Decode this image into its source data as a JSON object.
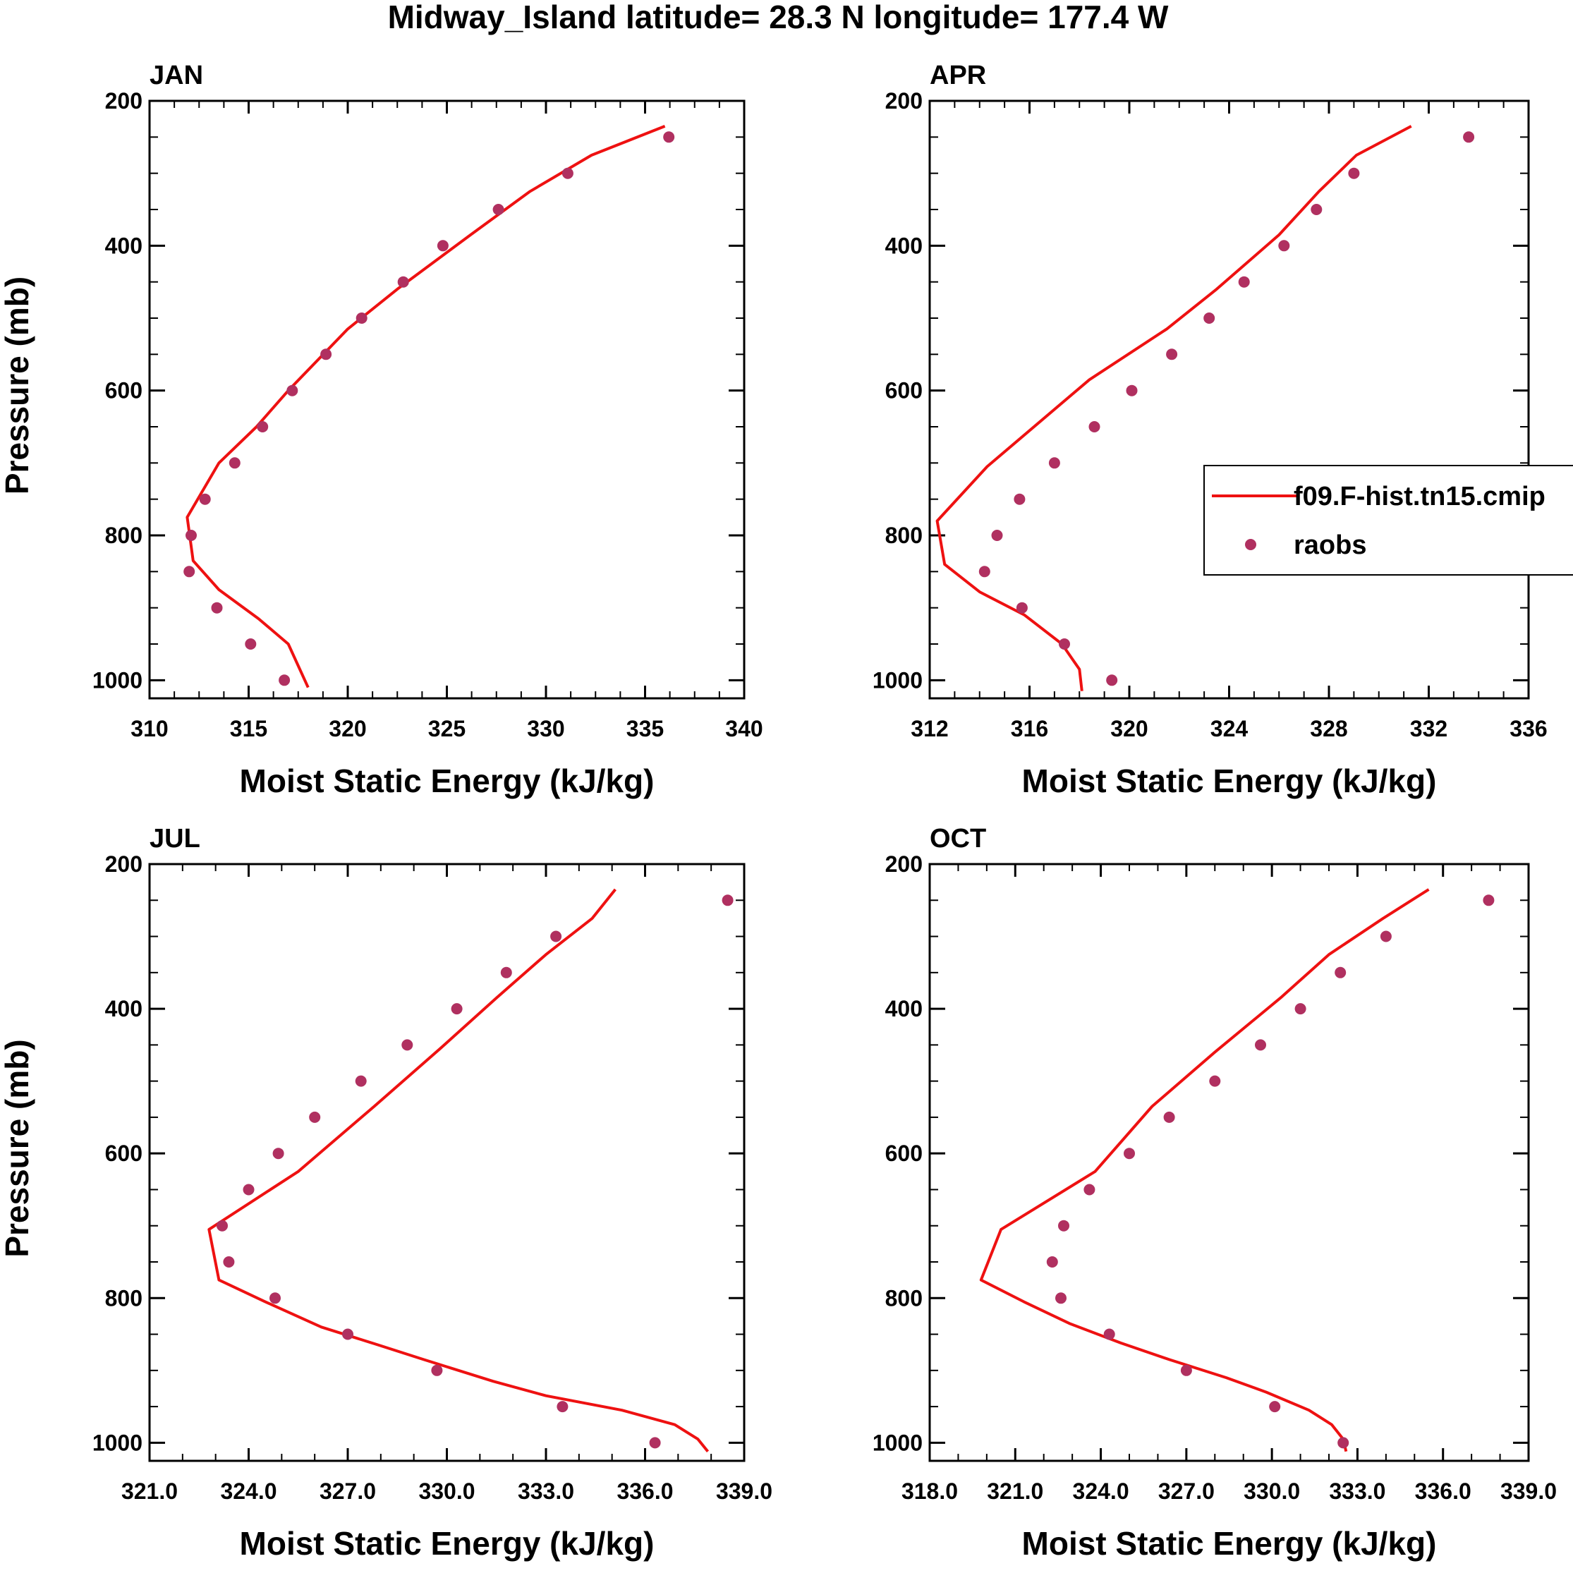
{
  "figure_title": "Midway_Island  latitude= 28.3 N longitude= 177.4 W",
  "colors": {
    "model": "#ee1111",
    "obs": "#b03060",
    "axis": "#000000"
  },
  "legend": {
    "model_label": "f09.F-hist.tn15.cmip",
    "obs_label": "raobs"
  },
  "chart_data": [
    {
      "type": "line",
      "panel": "JAN",
      "title": "JAN",
      "xlabel": "Moist Static Energy (kJ/kg)",
      "ylabel": "Pressure (mb)",
      "xlim": [
        310,
        340
      ],
      "ylim": [
        200,
        1025
      ],
      "y_inverted": true,
      "xticks": [
        310,
        315,
        320,
        325,
        330,
        335,
        340
      ],
      "xtick_labels": [
        "310",
        "315",
        "320",
        "325",
        "330",
        "335",
        "340"
      ],
      "yticks": [
        200,
        400,
        600,
        800,
        1000
      ],
      "ytick_labels": [
        "200",
        "400",
        "600",
        "800",
        "1000"
      ],
      "series": [
        {
          "name": "f09.F-hist.tn15.cmip",
          "kind": "line",
          "points": [
            [
              336.0,
              235
            ],
            [
              332.3,
              275
            ],
            [
              329.2,
              325
            ],
            [
              326.2,
              385
            ],
            [
              322.5,
              460
            ],
            [
              320.0,
              515
            ],
            [
              317.0,
              600
            ],
            [
              315.4,
              650
            ],
            [
              313.5,
              700
            ],
            [
              311.9,
              775
            ],
            [
              312.2,
              835
            ],
            [
              313.5,
              875
            ],
            [
              315.5,
              915
            ],
            [
              317.0,
              950
            ],
            [
              318.0,
              1010
            ]
          ]
        },
        {
          "name": "raobs",
          "kind": "scatter",
          "points": [
            [
              336.2,
              250
            ],
            [
              331.1,
              300
            ],
            [
              327.6,
              350
            ],
            [
              324.8,
              400
            ],
            [
              322.8,
              450
            ],
            [
              320.7,
              500
            ],
            [
              318.9,
              550
            ],
            [
              317.2,
              600
            ],
            [
              315.7,
              650
            ],
            [
              314.3,
              700
            ],
            [
              312.8,
              750
            ],
            [
              312.1,
              800
            ],
            [
              312.0,
              850
            ],
            [
              313.4,
              900
            ],
            [
              315.1,
              950
            ],
            [
              316.8,
              1000
            ]
          ]
        }
      ]
    },
    {
      "type": "line",
      "panel": "APR",
      "title": "APR",
      "xlabel": "Moist Static Energy (kJ/kg)",
      "ylabel": "",
      "xlim": [
        312,
        336
      ],
      "ylim": [
        200,
        1025
      ],
      "y_inverted": true,
      "xticks": [
        312,
        316,
        320,
        324,
        328,
        332,
        336
      ],
      "xtick_labels": [
        "312",
        "316",
        "320",
        "324",
        "328",
        "332",
        "336"
      ],
      "yticks": [
        200,
        400,
        600,
        800,
        1000
      ],
      "ytick_labels": [
        "200",
        "400",
        "600",
        "800",
        "1000"
      ],
      "series": [
        {
          "name": "f09.F-hist.tn15.cmip",
          "kind": "line",
          "points": [
            [
              331.3,
              235
            ],
            [
              329.1,
              275
            ],
            [
              327.6,
              325
            ],
            [
              326.0,
              385
            ],
            [
              323.5,
              460
            ],
            [
              321.5,
              515
            ],
            [
              318.4,
              585
            ],
            [
              314.3,
              705
            ],
            [
              312.3,
              780
            ],
            [
              312.6,
              840
            ],
            [
              314.0,
              878
            ],
            [
              315.8,
              910
            ],
            [
              317.3,
              950
            ],
            [
              318.0,
              985
            ],
            [
              318.1,
              1015
            ]
          ]
        },
        {
          "name": "raobs",
          "kind": "scatter",
          "points": [
            [
              333.6,
              250
            ],
            [
              329.0,
              300
            ],
            [
              327.5,
              350
            ],
            [
              326.2,
              400
            ],
            [
              324.6,
              450
            ],
            [
              323.2,
              500
            ],
            [
              321.7,
              550
            ],
            [
              320.1,
              600
            ],
            [
              318.6,
              650
            ],
            [
              317.0,
              700
            ],
            [
              315.6,
              750
            ],
            [
              314.7,
              800
            ],
            [
              314.2,
              850
            ],
            [
              315.7,
              900
            ],
            [
              317.4,
              950
            ],
            [
              319.3,
              1000
            ]
          ]
        }
      ]
    },
    {
      "type": "line",
      "panel": "JUL",
      "title": "JUL",
      "xlabel": "Moist Static Energy (kJ/kg)",
      "ylabel": "Pressure (mb)",
      "xlim": [
        321,
        339
      ],
      "ylim": [
        200,
        1025
      ],
      "y_inverted": true,
      "xticks": [
        321,
        324,
        327,
        330,
        333,
        336,
        339
      ],
      "xtick_labels": [
        "321.0",
        "324.0",
        "327.0",
        "330.0",
        "333.0",
        "336.0",
        "339.0"
      ],
      "yticks": [
        200,
        400,
        600,
        800,
        1000
      ],
      "ytick_labels": [
        "200",
        "400",
        "600",
        "800",
        "1000"
      ],
      "series": [
        {
          "name": "f09.F-hist.tn15.cmip",
          "kind": "line",
          "points": [
            [
              335.1,
              235
            ],
            [
              334.4,
              275
            ],
            [
              333.0,
              325
            ],
            [
              331.5,
              385
            ],
            [
              329.8,
              455
            ],
            [
              327.8,
              535
            ],
            [
              325.5,
              625
            ],
            [
              322.8,
              705
            ],
            [
              323.1,
              775
            ],
            [
              324.5,
              805
            ],
            [
              326.2,
              840
            ],
            [
              327.8,
              863
            ],
            [
              329.3,
              885
            ],
            [
              331.4,
              915
            ],
            [
              333.0,
              935
            ],
            [
              335.3,
              955
            ],
            [
              336.9,
              975
            ],
            [
              337.6,
              995
            ],
            [
              337.9,
              1012
            ]
          ]
        },
        {
          "name": "raobs",
          "kind": "scatter",
          "points": [
            [
              338.5,
              250
            ],
            [
              333.3,
              300
            ],
            [
              331.8,
              350
            ],
            [
              330.3,
              400
            ],
            [
              328.8,
              450
            ],
            [
              327.4,
              500
            ],
            [
              326.0,
              550
            ],
            [
              324.9,
              600
            ],
            [
              324.0,
              650
            ],
            [
              323.2,
              700
            ],
            [
              323.4,
              750
            ],
            [
              324.8,
              800
            ],
            [
              327.0,
              850
            ],
            [
              329.7,
              900
            ],
            [
              333.5,
              950
            ],
            [
              336.3,
              1000
            ]
          ]
        }
      ]
    },
    {
      "type": "line",
      "panel": "OCT",
      "title": "OCT",
      "xlabel": "Moist Static Energy (kJ/kg)",
      "ylabel": "",
      "xlim": [
        318,
        339
      ],
      "ylim": [
        200,
        1025
      ],
      "y_inverted": true,
      "xticks": [
        318,
        321,
        324,
        327,
        330,
        333,
        336,
        339
      ],
      "xtick_labels": [
        "318.0",
        "321.0",
        "324.0",
        "327.0",
        "330.0",
        "333.0",
        "336.0",
        "339.0"
      ],
      "yticks": [
        200,
        400,
        600,
        800,
        1000
      ],
      "ytick_labels": [
        "200",
        "400",
        "600",
        "800",
        "1000"
      ],
      "series": [
        {
          "name": "f09.F-hist.tn15.cmip",
          "kind": "line",
          "points": [
            [
              335.5,
              235
            ],
            [
              333.9,
              275
            ],
            [
              332.0,
              325
            ],
            [
              330.3,
              385
            ],
            [
              328.0,
              460
            ],
            [
              325.8,
              535
            ],
            [
              323.8,
              625
            ],
            [
              320.5,
              705
            ],
            [
              319.8,
              775
            ],
            [
              321.3,
              805
            ],
            [
              322.9,
              835
            ],
            [
              324.7,
              862
            ],
            [
              326.4,
              885
            ],
            [
              328.4,
              910
            ],
            [
              329.8,
              930
            ],
            [
              331.3,
              955
            ],
            [
              332.1,
              975
            ],
            [
              332.5,
              995
            ],
            [
              332.6,
              1012
            ]
          ]
        },
        {
          "name": "raobs",
          "kind": "scatter",
          "points": [
            [
              337.6,
              250
            ],
            [
              334.0,
              300
            ],
            [
              332.4,
              350
            ],
            [
              331.0,
              400
            ],
            [
              329.6,
              450
            ],
            [
              328.0,
              500
            ],
            [
              326.4,
              550
            ],
            [
              325.0,
              600
            ],
            [
              323.6,
              650
            ],
            [
              322.7,
              700
            ],
            [
              322.3,
              750
            ],
            [
              322.6,
              800
            ],
            [
              324.3,
              850
            ],
            [
              327.0,
              900
            ],
            [
              330.1,
              950
            ],
            [
              332.5,
              1000
            ]
          ]
        }
      ]
    }
  ]
}
